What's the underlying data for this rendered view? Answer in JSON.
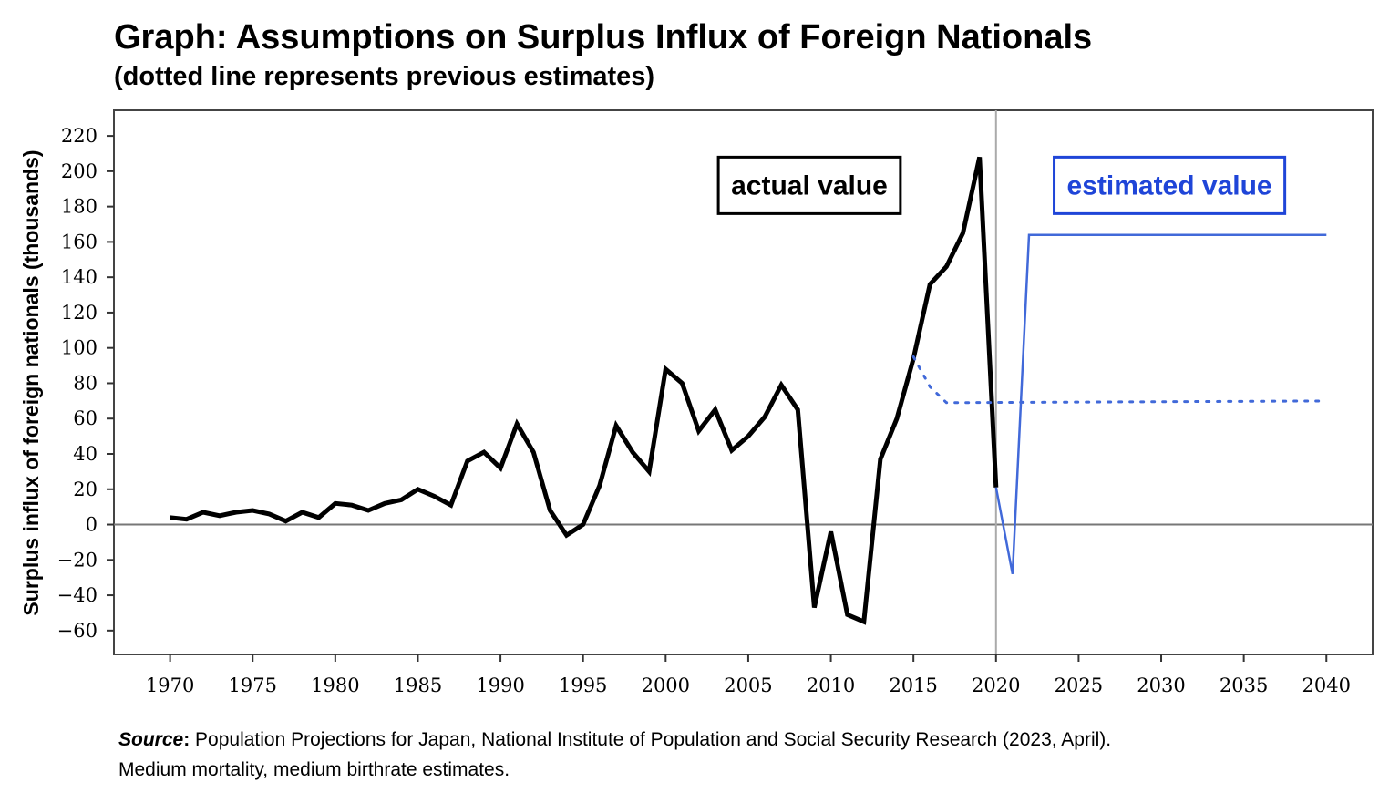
{
  "header": {
    "title": "Graph: Assumptions on Surplus Influx of Foreign Nationals",
    "subtitle": "(dotted line represents previous estimates)"
  },
  "footer": {
    "source_label": "Source",
    "source_colon": ":",
    "source_text": " Population Projections for Japan, National Institute of Population and Social Security Research (2023, April).",
    "source_line2": "Medium mortality, medium birthrate estimates."
  },
  "chart_data": {
    "type": "line",
    "title": "Graph: Assumptions on Surplus Influx of Foreign Nationals",
    "subtitle": "(dotted line represents previous estimates)",
    "xlabel": "",
    "ylabel": "Surplus influx of foreign nationals (thousands)",
    "xlim": [
      1966.6,
      2042.8
    ],
    "ylim": [
      -73.5,
      234.5
    ],
    "x_ticks": [
      1970,
      1975,
      1980,
      1985,
      1990,
      1995,
      2000,
      2005,
      2010,
      2015,
      2020,
      2025,
      2030,
      2035,
      2040
    ],
    "y_ticks": [
      220,
      200,
      180,
      160,
      140,
      120,
      100,
      80,
      60,
      40,
      20,
      0,
      -20,
      -40,
      -60
    ],
    "y_tick_labels": [
      "220",
      "200",
      "180",
      "160",
      "140",
      "120",
      "100",
      "80",
      "60",
      "40",
      "20",
      "0",
      "−20",
      "−40",
      "−60"
    ],
    "grid": false,
    "reference_lines": [
      {
        "axis": "y",
        "value": 0
      },
      {
        "axis": "x",
        "value": 2020
      }
    ],
    "annotations": [
      {
        "text": "actual value",
        "x": 2008.7,
        "y": 192,
        "color": "#000000"
      },
      {
        "text": "estimated value",
        "x": 2030.5,
        "y": 192,
        "color": "#1f45d8"
      }
    ],
    "series": [
      {
        "name": "actual value",
        "style": "solid",
        "color": "#000000",
        "x": [
          1970,
          1971,
          1972,
          1973,
          1974,
          1975,
          1976,
          1977,
          1978,
          1979,
          1980,
          1981,
          1982,
          1983,
          1984,
          1985,
          1986,
          1987,
          1988,
          1989,
          1990,
          1991,
          1992,
          1993,
          1994,
          1995,
          1996,
          1997,
          1998,
          1999,
          2000,
          2001,
          2002,
          2003,
          2004,
          2005,
          2006,
          2007,
          2008,
          2009,
          2010,
          2011,
          2012,
          2013,
          2014,
          2015,
          2016,
          2017,
          2018,
          2019,
          2020
        ],
        "y": [
          4,
          3,
          7,
          5,
          7,
          8,
          6,
          2,
          7,
          4,
          12,
          11,
          8,
          12,
          14,
          20,
          16,
          11,
          36,
          41,
          32,
          57,
          41,
          8,
          -6,
          0,
          22,
          56,
          41,
          30,
          88,
          80,
          53,
          65,
          42,
          50,
          61,
          79,
          65,
          -47,
          -4,
          -51,
          -55,
          37,
          60,
          94,
          136,
          146,
          165,
          208,
          21
        ]
      },
      {
        "name": "estimated value",
        "style": "solid",
        "color": "#4169d9",
        "x": [
          2020,
          2021,
          2022,
          2040
        ],
        "y": [
          21,
          -28,
          164,
          164
        ]
      },
      {
        "name": "previous estimates",
        "style": "dotted",
        "color": "#4169d9",
        "x": [
          2015,
          2016,
          2017,
          2040
        ],
        "y": [
          95,
          78,
          69,
          70
        ]
      }
    ]
  }
}
